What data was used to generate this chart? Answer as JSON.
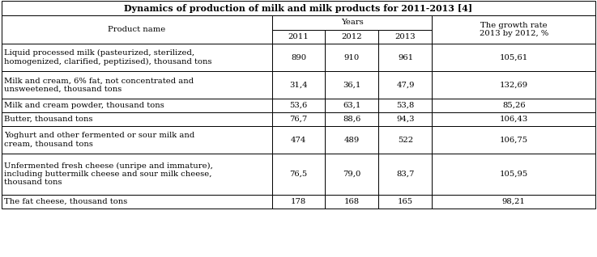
{
  "title": "Dynamics of production of milk and milk products for 2011-2013 [4]",
  "rows": [
    {
      "name": "Liquid processed milk (pasteurized, sterilized,\nhomogenized, clarified, peptizised), thousand tons",
      "v2011": "890",
      "v2012": "910",
      "v2013": "961",
      "growth": "105,61",
      "nlines": 2
    },
    {
      "name": "Milk and cream, 6% fat, not concentrated and\nunsweetened, thousand tons",
      "v2011": "31,4",
      "v2012": "36,1",
      "v2013": "47,9",
      "growth": "132,69",
      "nlines": 2
    },
    {
      "name": "Milk and cream powder, thousand tons",
      "v2011": "53,6",
      "v2012": "63,1",
      "v2013": "53,8",
      "growth": "85,26",
      "nlines": 1
    },
    {
      "name": "Butter, thousand tons",
      "v2011": "76,7",
      "v2012": "88,6",
      "v2013": "94,3",
      "growth": "106,43",
      "nlines": 1
    },
    {
      "name": "Yoghurt and other fermented or sour milk and\ncream, thousand tons",
      "v2011": "474",
      "v2012": "489",
      "v2013": "522",
      "growth": "106,75",
      "nlines": 2
    },
    {
      "name": "Unfermented fresh cheese (unripe and immature),\nincluding buttermilk cheese and sour milk cheese,\nthousand tons",
      "v2011": "76,5",
      "v2012": "79,0",
      "v2013": "83,7",
      "growth": "105,95",
      "nlines": 3
    },
    {
      "name": "The fat cheese, thousand tons",
      "v2011": "178",
      "v2012": "168",
      "v2013": "165",
      "growth": "98,21",
      "nlines": 1
    }
  ],
  "bg_color": "#ffffff",
  "font_size": 7.2,
  "title_font_size": 8.0
}
